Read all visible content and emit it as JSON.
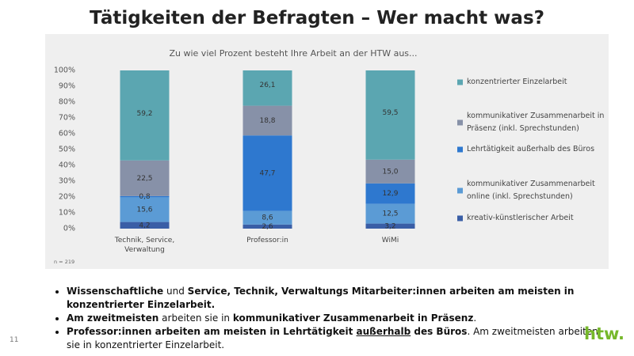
{
  "title": "Tätigkeiten der Befragten – Wer macht was?",
  "chart_data": {
    "type": "stacked_bar",
    "title": "Zu wie viel Prozent besteht Ihre Arbeit an der HTW aus...",
    "annotation": "n = 219",
    "categories": [
      "Technik, Service, Verwaltung",
      "Professor:in",
      "WiMi"
    ],
    "series": [
      {
        "name": "kreativ-künstlerischer Arbeit",
        "color": "#3a5ea6",
        "values": [
          4.2,
          2.6,
          3.2
        ],
        "value_labels": [
          "4,2",
          "2,6",
          "3,2"
        ]
      },
      {
        "name": "kommunikativer Zusammenarbeit online (inkl. Sprechstunden)",
        "color": "#5b9bd5",
        "values": [
          15.6,
          8.6,
          12.5
        ],
        "value_labels": [
          "15,6",
          "8,6",
          "12,5"
        ]
      },
      {
        "name": "Lehrtätigkeit außerhalb des Büros",
        "color": "#2e78cf",
        "values": [
          0.8,
          47.7,
          12.9
        ],
        "value_labels": [
          "0,8",
          "47,7",
          "12,9"
        ]
      },
      {
        "name": "kommunikativer Zusammenarbeit in Präsenz (inkl. Sprechstunden)",
        "color": "#8791a8",
        "values": [
          22.5,
          18.8,
          15.0
        ],
        "value_labels": [
          "22,5",
          "18,8",
          "15,0"
        ]
      },
      {
        "name": "konzentrierter Einzelarbeit",
        "color": "#5ba6b1",
        "values": [
          59.2,
          26.1,
          59.5
        ],
        "value_labels": [
          "59,2",
          "26,1",
          "59,5"
        ]
      }
    ],
    "ylim": [
      0,
      100
    ],
    "yticks": [
      {
        "value": 0,
        "label": "0%"
      },
      {
        "value": 10,
        "label": "10%"
      },
      {
        "value": 20,
        "label": "20%"
      },
      {
        "value": 30,
        "label": "30%"
      },
      {
        "value": 40,
        "label": "40%"
      },
      {
        "value": 50,
        "label": "50%"
      },
      {
        "value": 60,
        "label": "60%"
      },
      {
        "value": 70,
        "label": "70%"
      },
      {
        "value": 80,
        "label": "80%"
      },
      {
        "value": 90,
        "label": "90%"
      },
      {
        "value": 100,
        "label": "100%"
      }
    ],
    "grid": false,
    "legend": "right"
  },
  "bullets": [
    [
      {
        "text": "Wissenschaftliche",
        "bold": true
      },
      {
        "text": " und ",
        "bold": false
      },
      {
        "text": "Service, Technik, Verwaltungs Mitarbeiter:innen arbeiten am meisten in konzentrierter Einzelarbeit.",
        "bold": true
      }
    ],
    [
      {
        "text": "Am zweitmeisten",
        "bold": true
      },
      {
        "text": " arbeiten sie in ",
        "bold": false
      },
      {
        "text": "kommunikativer Zusammenarbeit in Präsenz",
        "bold": true
      },
      {
        "text": ".",
        "bold": false
      }
    ],
    [
      {
        "text": "Professor:innen arbeiten am meisten in Lehrtätigkeit ",
        "bold": true
      },
      {
        "text": "außerhalb",
        "bold": true,
        "underline": true
      },
      {
        "text": " des Büros",
        "bold": true
      },
      {
        "text": ". Am zweitmeisten arbeiten sie in konzentrierter Einzelarbeit.",
        "bold": false
      }
    ]
  ],
  "page_number": "11",
  "logo": "htw."
}
